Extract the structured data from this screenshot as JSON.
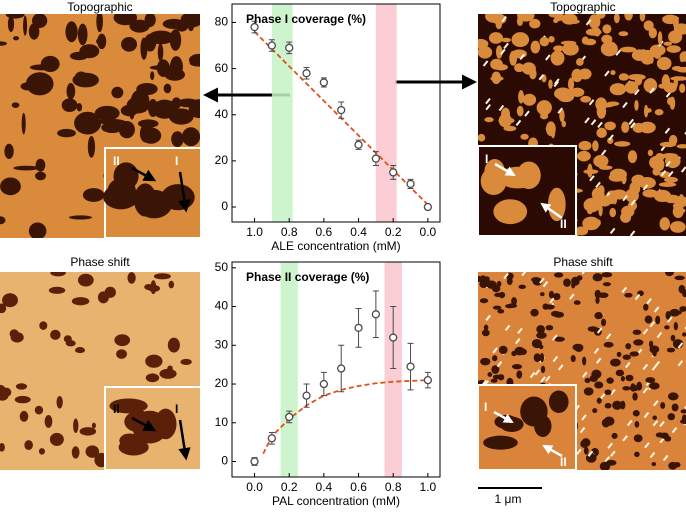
{
  "chart_data": [
    {
      "type": "scatter",
      "title": "Phase I coverage (%)",
      "x_label": "ALE concentration (mM)",
      "xlim": [
        1.13,
        -0.07
      ],
      "ylim": [
        -6.5,
        88
      ],
      "xticks": [
        {
          "value": 1,
          "label": "1.0"
        },
        0.8,
        0.6,
        0.4,
        0.2,
        {
          "value": 0,
          "label": "0.0"
        }
      ],
      "yticks": [
        0,
        20,
        40,
        60,
        80
      ],
      "x": [
        1.0,
        0.9,
        0.8,
        0.7,
        0.6,
        0.5,
        0.4,
        0.3,
        0.2,
        0.1,
        0.0
      ],
      "series": [
        {
          "color": "#4a4a4a",
          "values": [
            78,
            70,
            69,
            58,
            54,
            42,
            27,
            21,
            15,
            10,
            0
          ],
          "errors": [
            2.5,
            2.5,
            2.5,
            2.5,
            2,
            3.5,
            2,
            3,
            3,
            2,
            1
          ]
        }
      ],
      "fit": {
        "color": "#e0501a",
        "x": [
          1.0,
          0.0
        ],
        "values": [
          76,
          1
        ]
      },
      "bands": [
        {
          "x": [
            0.78,
            0.9
          ],
          "color": "#c6f2c6"
        },
        {
          "x": [
            0.18,
            0.3
          ],
          "color": "#f9c6cc"
        }
      ]
    },
    {
      "type": "scatter",
      "title": "Phase II coverage (%)",
      "x_label": "PAL concentration (mM)",
      "xlim": [
        -0.13,
        1.07
      ],
      "ylim": [
        -4,
        51.5
      ],
      "xticks": [
        {
          "value": 0,
          "label": "0.0"
        },
        0.2,
        0.4,
        0.6,
        0.8,
        {
          "value": 1,
          "label": "1.0"
        }
      ],
      "yticks": [
        0,
        10,
        20,
        30,
        40,
        50
      ],
      "x": [
        0.0,
        0.1,
        0.2,
        0.3,
        0.4,
        0.5,
        0.6,
        0.7,
        0.8,
        0.9,
        1.0
      ],
      "series": [
        {
          "color": "#4a4a4a",
          "values": [
            0,
            6,
            11.5,
            17,
            20,
            24,
            34.5,
            38,
            32,
            24.5,
            21
          ],
          "errors": [
            1,
            1.5,
            1.5,
            3,
            3,
            6,
            5,
            6,
            8,
            6,
            2
          ]
        }
      ],
      "fit": {
        "color": "#e0501a",
        "x": [
          0.05,
          0.1,
          0.2,
          0.3,
          0.4,
          0.5,
          0.6,
          0.7,
          0.8,
          0.9,
          1.0
        ],
        "values": [
          2,
          6.5,
          11,
          14.5,
          17,
          18.5,
          19.5,
          20.2,
          20.6,
          20.8,
          21
        ]
      },
      "bands": [
        {
          "x": [
            0.15,
            0.25
          ],
          "color": "#c6f2c6"
        },
        {
          "x": [
            0.75,
            0.85
          ],
          "color": "#f9c6cc"
        }
      ]
    }
  ],
  "panels": {
    "top_left": "Topographic",
    "top_right": "Topographic",
    "bottom_left": "Phase shift",
    "bottom_right": "Phase shift",
    "label_one": "I",
    "label_two": "II",
    "scale": "1 μm"
  }
}
